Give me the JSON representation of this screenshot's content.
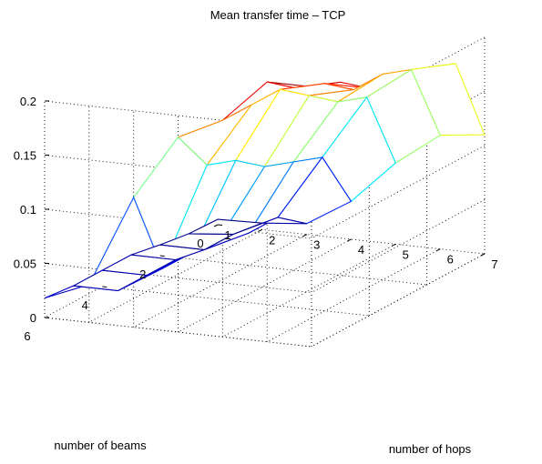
{
  "chart_data": {
    "type": "surface3d",
    "title": "Mean transfer time – TCP",
    "xlabel": "number of hops",
    "ylabel": "number of beams",
    "zlabel": "",
    "x_ticks": [
      "1",
      "2",
      "3",
      "4",
      "5",
      "6",
      "7"
    ],
    "y_ticks": [
      "0",
      "2",
      "4",
      "6"
    ],
    "z_ticks": [
      "0",
      "0.05",
      "0.1",
      "0.15",
      "0.2"
    ],
    "xlim": [
      1,
      7
    ],
    "ylim": [
      0,
      6
    ],
    "zlim": [
      0,
      0.2
    ],
    "colormap": "jet",
    "grid": true,
    "x": [
      1,
      2,
      3,
      4,
      5,
      6,
      7
    ],
    "y": [
      0,
      1,
      2,
      3,
      4,
      5,
      6
    ],
    "z": [
      [
        0.005,
        0.006,
        0.01,
        0.035,
        0.075,
        0.105,
        0.11
      ],
      [
        0.006,
        0.01,
        0.03,
        0.09,
        0.15,
        0.18,
        0.19
      ],
      [
        0.01,
        0.01,
        0.03,
        0.1,
        0.16,
        0.19,
        0.2
      ],
      [
        0.015,
        0.015,
        0.04,
        0.11,
        0.18,
        0.19,
        0.2
      ],
      [
        0.015,
        0.015,
        0.04,
        0.13,
        0.2,
        0.21,
        0.21
      ],
      [
        0.015,
        0.015,
        0.04,
        0.14,
        0.2,
        0.22,
        0.23
      ],
      [
        0.018,
        0.035,
        0.12,
        0.18,
        0.2,
        0.24,
        0.24
      ]
    ]
  }
}
